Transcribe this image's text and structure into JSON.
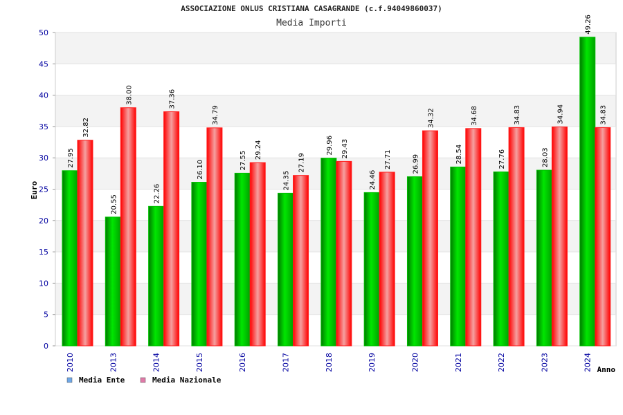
{
  "chart_data": {
    "type": "bar",
    "title": "ASSOCIAZIONE ONLUS CRISTIANA CASAGRANDE (c.f.94049860037)",
    "subtitle": "Media Importi",
    "xlabel": "Anno",
    "ylabel": "Euro",
    "ylim": [
      0,
      50
    ],
    "yticks": [
      0,
      5,
      10,
      15,
      20,
      25,
      30,
      35,
      40,
      45,
      50
    ],
    "grid": true,
    "legend_position": "bottom-left",
    "categories": [
      "2010",
      "2013",
      "2014",
      "2015",
      "2016",
      "2017",
      "2018",
      "2019",
      "2020",
      "2021",
      "2022",
      "2023",
      "2024"
    ],
    "series": [
      {
        "name": "Media Ente",
        "color": "#00c000",
        "legend_color": "#6fa8e8",
        "values": [
          27.95,
          20.55,
          22.26,
          26.1,
          27.55,
          24.35,
          29.96,
          24.46,
          26.99,
          28.54,
          27.76,
          28.03,
          49.26
        ],
        "labels": [
          "27.95",
          "20.55",
          "22.26",
          "26.10",
          "27.55",
          "24.35",
          "29.96",
          "24.46",
          "26.99",
          "28.54",
          "27.76",
          "28.03",
          "49.26"
        ]
      },
      {
        "name": "Media Nazionale",
        "color": "#ff1f1f",
        "legend_color": "#e07aa8",
        "values": [
          32.82,
          38.0,
          37.36,
          34.79,
          29.24,
          27.19,
          29.43,
          27.71,
          34.32,
          34.68,
          34.83,
          34.94,
          34.83
        ],
        "labels": [
          "32.82",
          "38.00",
          "37.36",
          "34.79",
          "29.24",
          "27.19",
          "29.43",
          "27.71",
          "34.32",
          "34.68",
          "34.83",
          "34.94",
          "34.83"
        ]
      }
    ]
  }
}
